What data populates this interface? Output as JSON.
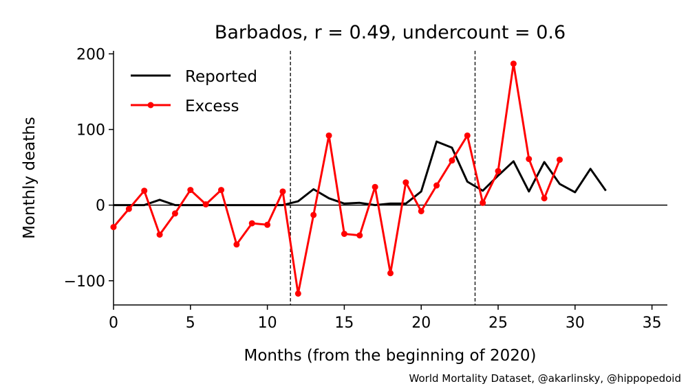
{
  "chart_data": {
    "type": "line",
    "title": "Barbados, r = 0.49, undercount = 0.6",
    "xlabel": "Months (from the beginning of 2020)",
    "ylabel": "Monthly deaths",
    "xlim": [
      0,
      36
    ],
    "ylim": [
      -132,
      204
    ],
    "xticks": [
      0,
      5,
      10,
      15,
      20,
      25,
      30,
      35
    ],
    "yticks": [
      -100,
      0,
      100,
      200
    ],
    "ytick_labels": [
      "−100",
      "0",
      "100",
      "200"
    ],
    "grid": false,
    "legend_position": "top-left",
    "vertical_lines": [
      11.5,
      23.5
    ],
    "series": [
      {
        "name": "Reported",
        "color": "#000000",
        "x": [
          0,
          1,
          2,
          3,
          4,
          5,
          6,
          7,
          8,
          9,
          10,
          11,
          12,
          13,
          14,
          15,
          16,
          17,
          18,
          19,
          20,
          21,
          22,
          23,
          24,
          25,
          26,
          27,
          28,
          29,
          30,
          31,
          32
        ],
        "values": [
          0,
          0,
          0,
          7,
          0,
          0,
          0,
          0,
          0,
          0,
          0,
          0,
          5,
          21,
          9,
          2,
          3,
          0,
          2,
          2,
          18,
          84,
          76,
          31,
          19,
          39,
          58,
          18,
          57,
          28,
          17,
          48,
          19
        ]
      },
      {
        "name": "Excess",
        "color": "#ff0000",
        "markers": true,
        "x": [
          0,
          1,
          2,
          3,
          4,
          5,
          6,
          7,
          8,
          9,
          10,
          11,
          12,
          13,
          14,
          15,
          16,
          17,
          18,
          19,
          20,
          21,
          22,
          23,
          24,
          25,
          26,
          27,
          28,
          29
        ],
        "values": [
          -29,
          -5,
          19,
          -39,
          -11,
          20,
          1,
          20,
          -52,
          -24,
          -26,
          18,
          -117,
          -13,
          92,
          -38,
          -40,
          24,
          -90,
          30,
          -8,
          26,
          59,
          92,
          3,
          45,
          187,
          61,
          9,
          60
        ]
      }
    ]
  },
  "credit": "World Mortality Dataset, @akarlinsky, @hippopedoid"
}
